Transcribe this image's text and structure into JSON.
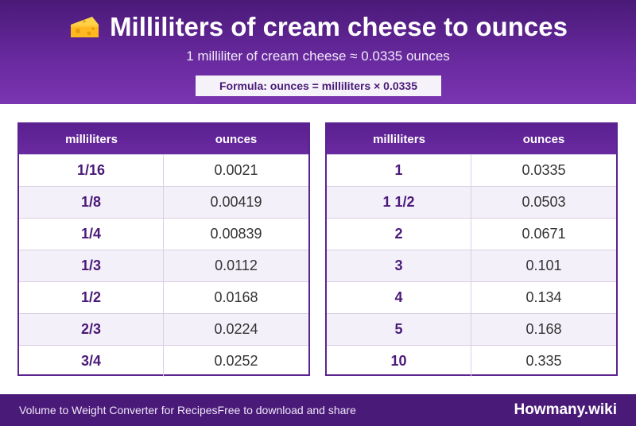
{
  "header": {
    "title": "Milliliters of cream cheese to ounces",
    "subtitle": "1 milliliter of cream cheese ≈ 0.0335 ounces",
    "formula": "Formula: ounces = milliliters × 0.0335",
    "icon": "cheese-icon"
  },
  "tables": [
    {
      "headers": [
        "milliliters",
        "ounces"
      ],
      "rows": [
        [
          "1/16",
          "0.0021"
        ],
        [
          "1/8",
          "0.00419"
        ],
        [
          "1/4",
          "0.00839"
        ],
        [
          "1/3",
          "0.0112"
        ],
        [
          "1/2",
          "0.0168"
        ],
        [
          "2/3",
          "0.0224"
        ],
        [
          "3/4",
          "0.0252"
        ]
      ]
    },
    {
      "headers": [
        "milliliters",
        "ounces"
      ],
      "rows": [
        [
          "1",
          "0.0335"
        ],
        [
          "1 1/2",
          "0.0503"
        ],
        [
          "2",
          "0.0671"
        ],
        [
          "3",
          "0.101"
        ],
        [
          "4",
          "0.134"
        ],
        [
          "5",
          "0.168"
        ],
        [
          "10",
          "0.335"
        ]
      ]
    }
  ],
  "footer": {
    "left_text": "Volume to Weight Converter for Recipes",
    "middle_text": "Free to download and share",
    "brand": "Howmany.wiki"
  },
  "colors": {
    "primary": "#4a1a78",
    "accent": "#6a2aa0",
    "row_alt": "#f4f0f9"
  }
}
